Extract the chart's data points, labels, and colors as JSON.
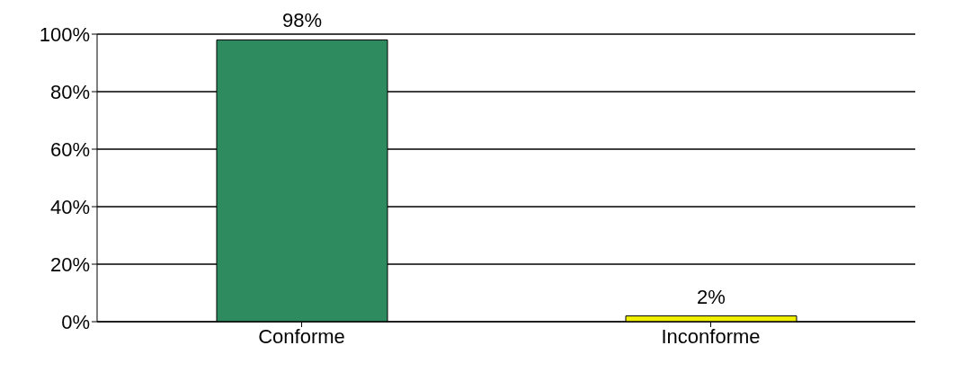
{
  "chart_data": {
    "type": "bar",
    "categories": [
      "Conforme",
      "Inconforme"
    ],
    "values": [
      98,
      2
    ],
    "colors": [
      "#2e8b5f",
      "#f0f000"
    ],
    "value_labels": [
      "98%",
      "2%"
    ],
    "ylim": [
      0,
      100
    ],
    "yticks": [
      {
        "value": 0,
        "label": "0%"
      },
      {
        "value": 20,
        "label": "20%"
      },
      {
        "value": 40,
        "label": "40%"
      },
      {
        "value": 60,
        "label": "60%"
      },
      {
        "value": 80,
        "label": "80%"
      },
      {
        "value": 100,
        "label": "100%"
      }
    ],
    "grid": "y"
  }
}
